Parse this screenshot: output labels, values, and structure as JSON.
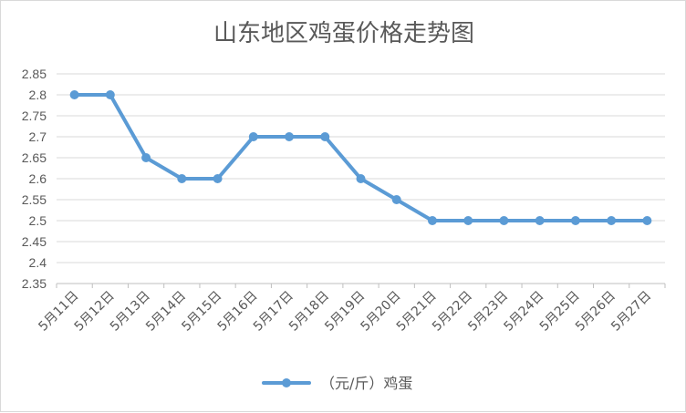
{
  "chart_data": {
    "type": "line",
    "title": "山东地区鸡蛋价格走势图",
    "xlabel": "",
    "ylabel": "",
    "categories": [
      "5月11日",
      "5月12日",
      "5月13日",
      "5月14日",
      "5月15日",
      "5月16日",
      "5月17日",
      "5月18日",
      "5月19日",
      "5月20日",
      "5月21日",
      "5月22日",
      "5月23日",
      "5月24日",
      "5月25日",
      "5月26日",
      "5月27日"
    ],
    "series": [
      {
        "name": "（元/斤）鸡蛋",
        "color": "#5b9bd5",
        "values": [
          2.8,
          2.8,
          2.65,
          2.6,
          2.6,
          2.7,
          2.7,
          2.7,
          2.6,
          2.55,
          2.5,
          2.5,
          2.5,
          2.5,
          2.5,
          2.5,
          2.5
        ]
      }
    ],
    "ylim": [
      2.35,
      2.85
    ],
    "yticks": [
      "2.35",
      "2.4",
      "2.45",
      "2.5",
      "2.55",
      "2.6",
      "2.65",
      "2.7",
      "2.75",
      "2.8",
      "2.85"
    ],
    "grid": true,
    "legend": "bottom"
  }
}
